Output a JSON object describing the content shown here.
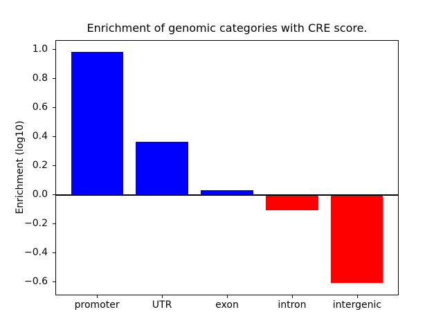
{
  "figure": {
    "background": "#ffffff"
  },
  "chart_data": {
    "type": "bar",
    "title": "Enrichment of genomic categories with CRE score.",
    "xlabel": "",
    "ylabel": "Enrichment (log10)",
    "categories": [
      "promoter",
      "UTR",
      "exon",
      "intron",
      "intergenic"
    ],
    "values": [
      0.98,
      0.36,
      0.03,
      -0.11,
      -0.61
    ],
    "bar_colors": [
      "#0000ff",
      "#0000ff",
      "#0000ff",
      "#ff0000",
      "#ff0000"
    ],
    "positive_color": "#0000ff",
    "negative_color": "#ff0000",
    "ylim": [
      -0.695,
      1.06
    ],
    "yticks": [
      1.0,
      0.8,
      0.6,
      0.4,
      0.2,
      0.0,
      -0.2,
      -0.4,
      -0.6
    ],
    "ytick_labels": [
      "1.0",
      "0.8",
      "0.6",
      "0.4",
      "0.2",
      "0.0",
      "−0.2",
      "−0.4",
      "−0.6"
    ],
    "grid": false,
    "legend": false,
    "zero_line": true,
    "bar_width_fraction": 0.8,
    "axis_color": "#000000",
    "text_color": "#000000"
  }
}
